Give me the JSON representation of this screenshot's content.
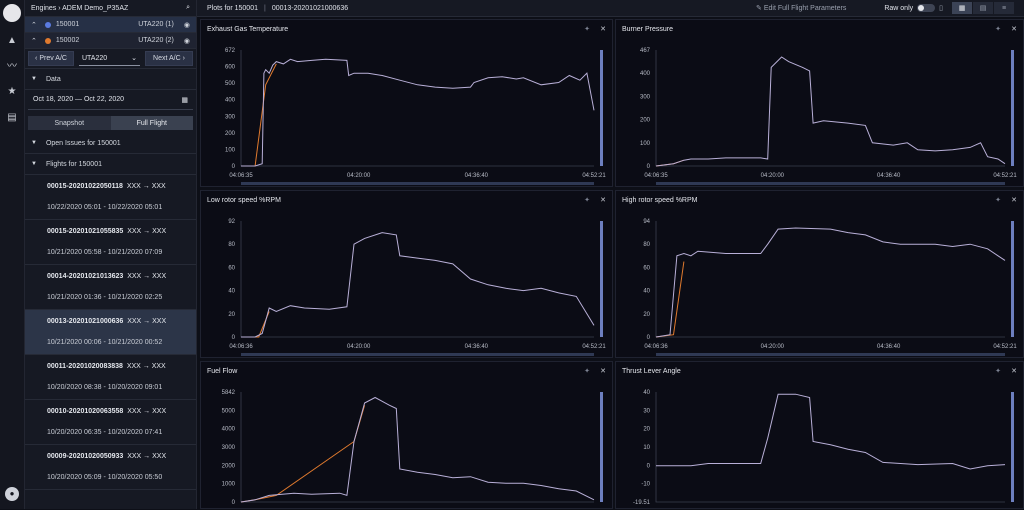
{
  "rail": {
    "icons": [
      "logo-icon",
      "triangle-icon",
      "chart-line-icon",
      "star-icon",
      "document-icon",
      "user-icon"
    ]
  },
  "sidebar": {
    "breadcrumb": "Engines  ›  ADEM Demo_P35AZ",
    "aircraft": [
      {
        "id": "150001",
        "engine": "UTA220 (1)",
        "color": "#5b7be0",
        "selected": true
      },
      {
        "id": "150002",
        "engine": "UTA220 (2)",
        "color": "#e07a2e",
        "selected": false
      }
    ],
    "prev_label": "‹ Prev A/C",
    "select_value": "UTA220",
    "next_label": "Next A/C ›",
    "data_label": "Data",
    "date_range": "Oct 18, 2020 — Oct 22, 2020",
    "snapshot_label": "Snapshot",
    "fullflight_label": "Full Flight",
    "open_issues_label": "Open Issues for 150001",
    "flights_label": "Flights for 150001",
    "flights": [
      {
        "id": "00015-20201022050118",
        "route": "XXX → XXX",
        "time": "10/22/2020 05:01 - 10/22/2020 05:01"
      },
      {
        "id": "00015-20201021055835",
        "route": "XXX → XXX",
        "time": "10/21/2020 05:58 - 10/21/2020 07:09"
      },
      {
        "id": "00014-20201021013623",
        "route": "XXX → XXX",
        "time": "10/21/2020 01:36 - 10/21/2020 02:25"
      },
      {
        "id": "00013-20201021000636",
        "route": "XXX → XXX",
        "time": "10/21/2020 00:06 - 10/21/2020 00:52"
      },
      {
        "id": "00011-20201020083838",
        "route": "XXX → XXX",
        "time": "10/20/2020 08:38 - 10/20/2020 09:01"
      },
      {
        "id": "00010-20201020063558",
        "route": "XXX → XXX",
        "time": "10/20/2020 06:35 - 10/20/2020 07:41"
      },
      {
        "id": "00009-20201020050933",
        "route": "XXX → XXX",
        "time": "10/20/2020 05:09 - 10/20/2020 05:50"
      }
    ]
  },
  "topbar": {
    "plots_label": "Plots for 150001",
    "flight_id": "00013-20201021000636",
    "edit_label": "Edit Full Flight Parameters",
    "raw_label": "Raw only"
  },
  "colors": {
    "series_main": "#b9b0d8",
    "series_alt": "#e07a2e",
    "series_blue": "#5b7be0",
    "bg": "#0b0c15"
  },
  "plots": [
    {
      "title": "Exhaust Gas Temperature",
      "yticks": [
        "672",
        "600",
        "500",
        "400",
        "300",
        "200",
        "100",
        "0"
      ],
      "xticks": [
        "04:06:35",
        "04:20:00",
        "04:36:40",
        "04:52:21"
      ],
      "trace": [
        [
          0,
          0
        ],
        [
          0.04,
          0
        ],
        [
          0.06,
          0.02
        ],
        [
          0.065,
          0.8
        ],
        [
          0.07,
          0.83
        ],
        [
          0.08,
          0.8
        ],
        [
          0.09,
          0.87
        ],
        [
          0.1,
          0.9
        ],
        [
          0.12,
          0.88
        ],
        [
          0.14,
          0.92
        ],
        [
          0.16,
          0.9
        ],
        [
          0.2,
          0.91
        ],
        [
          0.24,
          0.92
        ],
        [
          0.3,
          0.91
        ],
        [
          0.305,
          0.78
        ],
        [
          0.32,
          0.8
        ],
        [
          0.36,
          0.8
        ],
        [
          0.4,
          0.78
        ],
        [
          0.45,
          0.74
        ],
        [
          0.5,
          0.7
        ],
        [
          0.55,
          0.68
        ],
        [
          0.6,
          0.67
        ],
        [
          0.65,
          0.68
        ],
        [
          0.66,
          0.72
        ],
        [
          0.7,
          0.76
        ],
        [
          0.74,
          0.77
        ],
        [
          0.78,
          0.75
        ],
        [
          0.8,
          0.76
        ],
        [
          0.85,
          0.7
        ],
        [
          0.9,
          0.72
        ],
        [
          0.93,
          0.78
        ],
        [
          0.96,
          0.74
        ],
        [
          0.98,
          0.8
        ],
        [
          1,
          0.48
        ]
      ],
      "alt": [
        [
          0,
          0
        ],
        [
          0.04,
          0
        ],
        [
          0.07,
          0.7
        ],
        [
          0.1,
          0.88
        ]
      ]
    },
    {
      "title": "Burner Pressure",
      "yticks": [
        "467",
        "400",
        "300",
        "200",
        "100",
        "0"
      ],
      "xticks": [
        "04:06:35",
        "04:20:00",
        "04:36:40",
        "04:52:21"
      ],
      "trace": [
        [
          0,
          0
        ],
        [
          0.05,
          0.02
        ],
        [
          0.08,
          0.05
        ],
        [
          0.1,
          0.06
        ],
        [
          0.15,
          0.06
        ],
        [
          0.2,
          0.07
        ],
        [
          0.3,
          0.07
        ],
        [
          0.32,
          0.06
        ],
        [
          0.33,
          0.85
        ],
        [
          0.36,
          0.94
        ],
        [
          0.38,
          0.9
        ],
        [
          0.42,
          0.85
        ],
        [
          0.44,
          0.82
        ],
        [
          0.45,
          0.37
        ],
        [
          0.48,
          0.39
        ],
        [
          0.55,
          0.37
        ],
        [
          0.6,
          0.35
        ],
        [
          0.62,
          0.2
        ],
        [
          0.68,
          0.18
        ],
        [
          0.72,
          0.2
        ],
        [
          0.75,
          0.14
        ],
        [
          0.8,
          0.13
        ],
        [
          0.85,
          0.14
        ],
        [
          0.9,
          0.16
        ],
        [
          0.93,
          0.2
        ],
        [
          0.95,
          0.08
        ],
        [
          0.98,
          0.06
        ],
        [
          1,
          0.02
        ]
      ],
      "alt": [
        [
          0,
          0
        ],
        [
          0.05,
          0.02
        ],
        [
          0.08,
          0.05
        ]
      ]
    },
    {
      "title": "Low rotor speed %RPM",
      "yticks": [
        "92",
        "80",
        "60",
        "40",
        "20",
        "0"
      ],
      "xticks": [
        "04:06:36",
        "04:20:00",
        "04:36:40",
        "04:52:21"
      ],
      "trace": [
        [
          0,
          0
        ],
        [
          0.04,
          0
        ],
        [
          0.06,
          0.03
        ],
        [
          0.08,
          0.25
        ],
        [
          0.1,
          0.22
        ],
        [
          0.14,
          0.27
        ],
        [
          0.18,
          0.25
        ],
        [
          0.25,
          0.24
        ],
        [
          0.3,
          0.26
        ],
        [
          0.32,
          0.8
        ],
        [
          0.35,
          0.85
        ],
        [
          0.4,
          0.9
        ],
        [
          0.44,
          0.88
        ],
        [
          0.45,
          0.7
        ],
        [
          0.5,
          0.68
        ],
        [
          0.55,
          0.66
        ],
        [
          0.6,
          0.63
        ],
        [
          0.65,
          0.5
        ],
        [
          0.7,
          0.45
        ],
        [
          0.75,
          0.42
        ],
        [
          0.8,
          0.4
        ],
        [
          0.85,
          0.42
        ],
        [
          0.9,
          0.38
        ],
        [
          0.95,
          0.35
        ],
        [
          1,
          0.1
        ]
      ],
      "alt": [
        [
          0,
          0
        ],
        [
          0.05,
          0
        ],
        [
          0.08,
          0.22
        ]
      ]
    },
    {
      "title": "High rotor speed %RPM",
      "yticks": [
        "94",
        "80",
        "60",
        "40",
        "20",
        "0"
      ],
      "xticks": [
        "04:06:36",
        "04:20:00",
        "04:36:40",
        "04:52:21"
      ],
      "trace": [
        [
          0,
          0
        ],
        [
          0.04,
          0.02
        ],
        [
          0.06,
          0.7
        ],
        [
          0.08,
          0.72
        ],
        [
          0.1,
          0.7
        ],
        [
          0.12,
          0.74
        ],
        [
          0.2,
          0.72
        ],
        [
          0.3,
          0.72
        ],
        [
          0.32,
          0.8
        ],
        [
          0.35,
          0.93
        ],
        [
          0.4,
          0.94
        ],
        [
          0.5,
          0.93
        ],
        [
          0.55,
          0.9
        ],
        [
          0.6,
          0.88
        ],
        [
          0.65,
          0.82
        ],
        [
          0.7,
          0.8
        ],
        [
          0.8,
          0.8
        ],
        [
          0.85,
          0.78
        ],
        [
          0.9,
          0.8
        ],
        [
          0.95,
          0.76
        ],
        [
          0.98,
          0.7
        ],
        [
          1,
          0.66
        ]
      ],
      "alt": [
        [
          0,
          0
        ],
        [
          0.05,
          0.02
        ],
        [
          0.08,
          0.65
        ]
      ]
    },
    {
      "title": "Fuel Flow",
      "yticks": [
        "5842",
        "5000",
        "4000",
        "3000",
        "2000",
        "1000",
        "0"
      ],
      "xticks": [],
      "trace": [
        [
          0,
          0
        ],
        [
          0.04,
          0.02
        ],
        [
          0.08,
          0.06
        ],
        [
          0.15,
          0.08
        ],
        [
          0.2,
          0.07
        ],
        [
          0.28,
          0.08
        ],
        [
          0.3,
          0.06
        ],
        [
          0.32,
          0.55
        ],
        [
          0.35,
          0.9
        ],
        [
          0.38,
          0.95
        ],
        [
          0.42,
          0.88
        ],
        [
          0.44,
          0.85
        ],
        [
          0.45,
          0.3
        ],
        [
          0.5,
          0.27
        ],
        [
          0.55,
          0.25
        ],
        [
          0.6,
          0.22
        ],
        [
          0.65,
          0.23
        ],
        [
          0.7,
          0.18
        ],
        [
          0.75,
          0.17
        ],
        [
          0.8,
          0.17
        ],
        [
          0.85,
          0.15
        ],
        [
          0.9,
          0.12
        ],
        [
          0.95,
          0.1
        ],
        [
          1,
          0.02
        ]
      ],
      "alt": [
        [
          0,
          0
        ],
        [
          0.04,
          0.02
        ],
        [
          0.1,
          0.06
        ],
        [
          0.32,
          0.55
        ],
        [
          0.35,
          0.88
        ]
      ]
    },
    {
      "title": "Thrust Lever Angle",
      "yticks": [
        "40",
        "30",
        "20",
        "10",
        "0",
        "-10",
        "-19.51"
      ],
      "xticks": [],
      "trace": [
        [
          0,
          0.33
        ],
        [
          0.1,
          0.33
        ],
        [
          0.15,
          0.35
        ],
        [
          0.3,
          0.35
        ],
        [
          0.32,
          0.58
        ],
        [
          0.35,
          0.98
        ],
        [
          0.4,
          0.98
        ],
        [
          0.44,
          0.95
        ],
        [
          0.45,
          0.55
        ],
        [
          0.5,
          0.52
        ],
        [
          0.55,
          0.48
        ],
        [
          0.6,
          0.45
        ],
        [
          0.65,
          0.36
        ],
        [
          0.75,
          0.34
        ],
        [
          0.85,
          0.35
        ],
        [
          0.9,
          0.3
        ],
        [
          0.95,
          0.33
        ],
        [
          1,
          0.34
        ]
      ],
      "alt": []
    }
  ]
}
